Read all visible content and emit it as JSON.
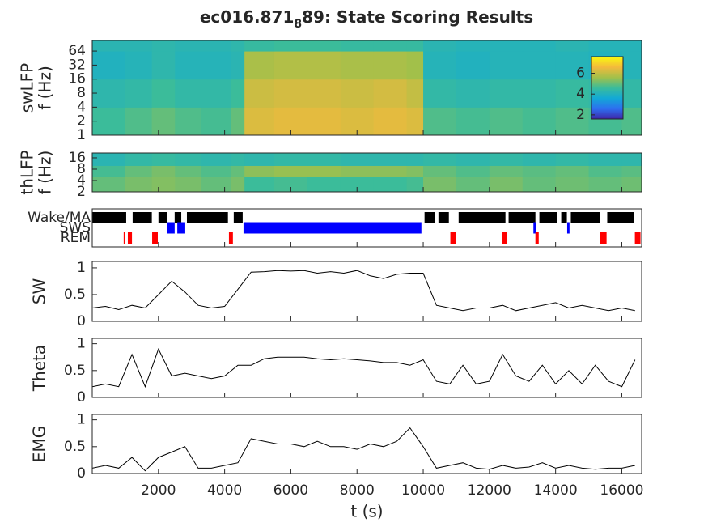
{
  "chart_data": [
    {
      "type": "heatmap",
      "title": {
        "main": "ec016.871",
        "subscript": "8",
        "rest": "89: State Scoring Results"
      },
      "ylabel": [
        "swLFP",
        "f (Hz)"
      ],
      "yscale": "log",
      "xlim": [
        0,
        16600
      ],
      "xticks": [
        2000,
        4000,
        6000,
        8000,
        10000,
        12000,
        14000,
        16000
      ],
      "ylim": [
        1,
        108
      ],
      "yticks": [
        1,
        2,
        4,
        8,
        16,
        32,
        64
      ],
      "colormap": [
        "#3e26a8",
        "#2d70f0",
        "#12a9d6",
        "#3bbc9a",
        "#a2c04a",
        "#f4ba3c",
        "#f9fb0e"
      ],
      "clim": [
        1.6,
        7.6
      ],
      "colorbar": {
        "ticks": [
          2,
          4,
          6
        ]
      },
      "x": [
        0,
        1000,
        1800,
        2500,
        3300,
        4200,
        4600,
        5500,
        6500,
        7500,
        8500,
        9500,
        10000,
        11000,
        12000,
        13000,
        14000,
        15000,
        16000,
        16600
      ],
      "y": [
        1,
        4,
        16,
        64,
        108
      ],
      "z": [
        [
          4.6,
          4.8,
          5.0,
          4.8,
          4.7,
          5.0,
          6.3,
          6.4,
          6.4,
          6.3,
          6.4,
          6.3,
          4.8,
          4.7,
          4.8,
          4.7,
          4.8,
          4.7,
          4.8
        ],
        [
          4.3,
          4.4,
          4.6,
          4.4,
          4.4,
          4.6,
          6.1,
          6.2,
          6.2,
          6.1,
          6.2,
          6.0,
          4.4,
          4.3,
          4.4,
          4.4,
          4.5,
          4.4,
          4.4
        ],
        [
          4.0,
          4.1,
          4.3,
          4.1,
          4.1,
          4.2,
          5.7,
          5.8,
          5.8,
          5.7,
          5.7,
          5.6,
          4.1,
          4.0,
          4.1,
          4.1,
          4.1,
          4.0,
          4.1
        ],
        [
          4.2,
          4.2,
          4.3,
          4.2,
          4.2,
          4.3,
          4.5,
          4.6,
          4.6,
          4.5,
          4.5,
          4.5,
          4.2,
          4.1,
          4.1,
          4.1,
          4.2,
          4.1,
          4.1
        ]
      ]
    },
    {
      "type": "heatmap",
      "ylabel": [
        "thLFP",
        "f (Hz)"
      ],
      "yscale": "log",
      "xlim": [
        0,
        16600
      ],
      "xticks": [
        2000,
        4000,
        6000,
        8000,
        10000,
        12000,
        14000,
        16000
      ],
      "ylim": [
        2,
        21.5
      ],
      "yticks": [
        2,
        4,
        8,
        16
      ],
      "colormap": [
        "#3e26a8",
        "#2d70f0",
        "#12a9d6",
        "#3bbc9a",
        "#a2c04a",
        "#f4ba3c",
        "#f9fb0e"
      ],
      "clim": [
        1.6,
        7.6
      ],
      "x": [
        0,
        1000,
        1800,
        2500,
        3300,
        4200,
        4600,
        5500,
        6500,
        7500,
        8500,
        9500,
        10000,
        11000,
        12000,
        13000,
        14000,
        15000,
        16000,
        16600
      ],
      "y": [
        2,
        5,
        10,
        21.5
      ],
      "z": [
        [
          5.0,
          5.2,
          5.3,
          5.2,
          5.0,
          5.2,
          4.6,
          4.7,
          4.6,
          4.6,
          4.6,
          4.7,
          5.2,
          5.0,
          5.2,
          5.0,
          5.1,
          5.0,
          5.1
        ],
        [
          4.7,
          5.0,
          5.2,
          5.0,
          4.8,
          5.0,
          5.4,
          5.5,
          5.5,
          5.4,
          5.4,
          5.3,
          5.0,
          4.8,
          5.0,
          4.9,
          5.0,
          4.8,
          4.9
        ],
        [
          4.2,
          4.4,
          4.5,
          4.4,
          4.3,
          4.4,
          4.3,
          4.4,
          4.4,
          4.3,
          4.3,
          4.3,
          4.4,
          4.3,
          4.4,
          4.3,
          4.4,
          4.3,
          4.3
        ]
      ]
    },
    {
      "type": "state",
      "xlim": [
        0,
        16600
      ],
      "xticks": [
        2000,
        4000,
        6000,
        8000,
        10000,
        12000,
        14000,
        16000
      ],
      "series": [
        {
          "name": "Wake/MA",
          "color": "#000000",
          "intervals": [
            [
              0,
              1026
            ],
            [
              1220,
              1800
            ],
            [
              2000,
              2250
            ],
            [
              2490,
              2690
            ],
            [
              2860,
              4100
            ],
            [
              4275,
              4545
            ],
            [
              10040,
              10360
            ],
            [
              10460,
              10775
            ],
            [
              11070,
              12485
            ],
            [
              12580,
              13390
            ],
            [
              13510,
              14050
            ],
            [
              14170,
              14340
            ],
            [
              14460,
              15340
            ],
            [
              15560,
              16370
            ]
          ]
        },
        {
          "name": "SWS",
          "color": "#0000ff",
          "intervals": [
            [
              2250,
              2490
            ],
            [
              2570,
              2810
            ],
            [
              4570,
              9945
            ],
            [
              13330,
              13420
            ],
            [
              14350,
              14420
            ]
          ]
        },
        {
          "name": "REM",
          "color": "#ff0000",
          "intervals": [
            [
              950,
              1000
            ],
            [
              1075,
              1200
            ],
            [
              1810,
              1980
            ],
            [
              4130,
              4250
            ],
            [
              10820,
              10990
            ],
            [
              12390,
              12530
            ],
            [
              13390,
              13490
            ],
            [
              15340,
              15540
            ],
            [
              16395,
              16565
            ]
          ]
        }
      ]
    },
    {
      "type": "line",
      "ylabel": [
        "SW"
      ],
      "xlim": [
        0,
        16600
      ],
      "xticks": [
        2000,
        4000,
        6000,
        8000,
        10000,
        12000,
        14000,
        16000
      ],
      "ylim": [
        0,
        1.12
      ],
      "yticks": [
        0,
        0.5,
        1
      ],
      "color": "#000000",
      "x": [
        0,
        400,
        800,
        1200,
        1600,
        2000,
        2400,
        2800,
        3200,
        3600,
        4000,
        4400,
        4800,
        5200,
        5600,
        6000,
        6400,
        6800,
        7200,
        7600,
        8000,
        8400,
        8800,
        9200,
        9600,
        10000,
        10400,
        10800,
        11200,
        11600,
        12000,
        12400,
        12800,
        13200,
        13600,
        14000,
        14400,
        14800,
        15200,
        15600,
        16000,
        16400
      ],
      "values": [
        0.25,
        0.28,
        0.22,
        0.3,
        0.25,
        0.5,
        0.75,
        0.55,
        0.3,
        0.25,
        0.28,
        0.6,
        0.92,
        0.93,
        0.95,
        0.94,
        0.95,
        0.9,
        0.93,
        0.9,
        0.95,
        0.85,
        0.8,
        0.88,
        0.9,
        0.9,
        0.3,
        0.25,
        0.2,
        0.25,
        0.25,
        0.3,
        0.2,
        0.25,
        0.3,
        0.35,
        0.25,
        0.3,
        0.25,
        0.2,
        0.25,
        0.2
      ]
    },
    {
      "type": "line",
      "ylabel": [
        "Theta"
      ],
      "xlim": [
        0,
        16600
      ],
      "xticks": [
        2000,
        4000,
        6000,
        8000,
        10000,
        12000,
        14000,
        16000
      ],
      "ylim": [
        0,
        1.1
      ],
      "yticks": [
        0,
        0.5,
        1
      ],
      "color": "#000000",
      "x": [
        0,
        400,
        800,
        1200,
        1600,
        2000,
        2400,
        2800,
        3200,
        3600,
        4000,
        4400,
        4800,
        5200,
        5600,
        6000,
        6400,
        6800,
        7200,
        7600,
        8000,
        8400,
        8800,
        9200,
        9600,
        10000,
        10400,
        10800,
        11200,
        11600,
        12000,
        12400,
        12800,
        13200,
        13600,
        14000,
        14400,
        14800,
        15200,
        15600,
        16000,
        16400
      ],
      "values": [
        0.2,
        0.25,
        0.2,
        0.8,
        0.2,
        0.9,
        0.4,
        0.45,
        0.4,
        0.35,
        0.4,
        0.6,
        0.6,
        0.72,
        0.75,
        0.75,
        0.75,
        0.72,
        0.7,
        0.72,
        0.7,
        0.68,
        0.65,
        0.65,
        0.6,
        0.7,
        0.3,
        0.25,
        0.6,
        0.25,
        0.3,
        0.8,
        0.4,
        0.3,
        0.6,
        0.25,
        0.5,
        0.25,
        0.6,
        0.3,
        0.2,
        0.7
      ]
    },
    {
      "type": "line",
      "ylabel": [
        "EMG"
      ],
      "xlabel": "t (s)",
      "xlim": [
        0,
        16600
      ],
      "xticks": [
        2000,
        4000,
        6000,
        8000,
        10000,
        12000,
        14000,
        16000
      ],
      "ylim": [
        0,
        1.1
      ],
      "yticks": [
        0,
        0.5,
        1
      ],
      "color": "#000000",
      "x": [
        0,
        400,
        800,
        1200,
        1600,
        2000,
        2400,
        2800,
        3200,
        3600,
        4000,
        4400,
        4800,
        5200,
        5600,
        6000,
        6400,
        6800,
        7200,
        7600,
        8000,
        8400,
        8800,
        9200,
        9600,
        10000,
        10400,
        10800,
        11200,
        11600,
        12000,
        12400,
        12800,
        13200,
        13600,
        14000,
        14400,
        14800,
        15200,
        15600,
        16000,
        16400
      ],
      "values": [
        0.1,
        0.15,
        0.1,
        0.3,
        0.05,
        0.3,
        0.4,
        0.5,
        0.1,
        0.1,
        0.15,
        0.2,
        0.65,
        0.6,
        0.55,
        0.55,
        0.5,
        0.6,
        0.5,
        0.5,
        0.45,
        0.55,
        0.5,
        0.6,
        0.85,
        0.5,
        0.1,
        0.15,
        0.2,
        0.1,
        0.08,
        0.15,
        0.1,
        0.12,
        0.2,
        0.1,
        0.15,
        0.1,
        0.08,
        0.1,
        0.1,
        0.15
      ]
    }
  ]
}
